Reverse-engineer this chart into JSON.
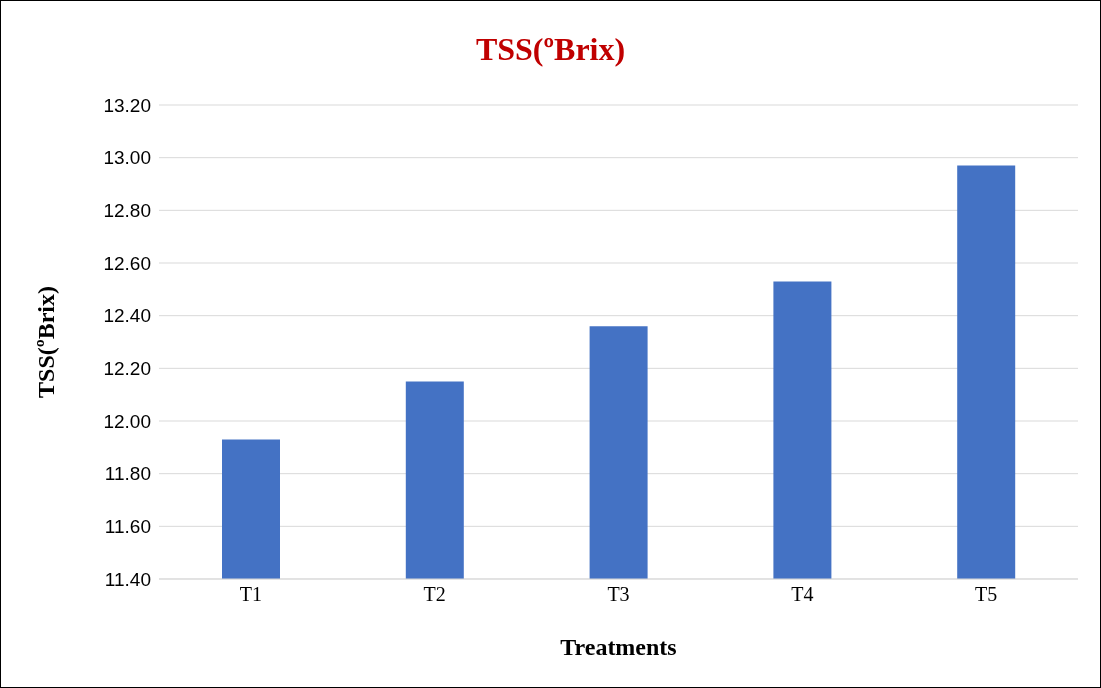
{
  "chart_data": {
    "type": "bar",
    "title": "TSS(ºBrix)",
    "xlabel": "Treatments",
    "ylabel": "TSS(ºBrix)",
    "categories": [
      "T1",
      "T2",
      "T3",
      "T4",
      "T5"
    ],
    "values": [
      11.93,
      12.15,
      12.36,
      12.53,
      12.97
    ],
    "color": "#4472c4",
    "ylim": [
      11.4,
      13.2
    ],
    "yticks": [
      {
        "value": 11.4,
        "label": "11.40"
      },
      {
        "value": 11.6,
        "label": "11.60"
      },
      {
        "value": 11.8,
        "label": "11.80"
      },
      {
        "value": 12,
        "label": "12.00"
      },
      {
        "value": 12.2,
        "label": "12.20"
      },
      {
        "value": 12.4,
        "label": "12.40"
      },
      {
        "value": 12.6,
        "label": "12.60"
      },
      {
        "value": 12.8,
        "label": "12.80"
      },
      {
        "value": 13,
        "label": "13.00"
      },
      {
        "value": 13.2,
        "label": "13.20"
      }
    ],
    "grid": "y",
    "legend": false
  }
}
